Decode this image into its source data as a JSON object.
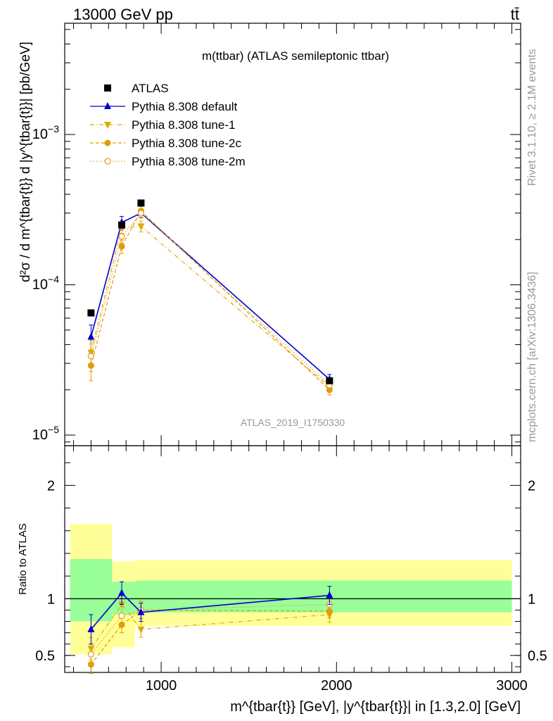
{
  "header": {
    "left": "13000 GeV pp",
    "right": "tt̄"
  },
  "side_labels": {
    "rivet": "Rivet 3.1.10, ≥ 2.1M events",
    "mcplots": "mcplots.cern.ch [arXiv:1306.3436]"
  },
  "chart_data": [
    {
      "type": "line",
      "title": "m(ttbar) (ATLAS semileptonic ttbar)",
      "watermark": "ATLAS_2019_I1750330",
      "ylabel": "d²σ / d m^{tbar{t}} d |y^{tbar{t}}| [pb/GeV]",
      "yscale": "log",
      "xlim": [
        450,
        3050
      ],
      "ylim": [
        8.5e-06,
        0.0055
      ],
      "yticks": [
        {
          "value": 1e-05,
          "base": "10",
          "exp": "−5"
        },
        {
          "value": 0.0001,
          "base": "10",
          "exp": "−4"
        },
        {
          "value": 0.001,
          "base": "10",
          "exp": "−3"
        }
      ],
      "legend": {
        "placement": "top-left",
        "entries": [
          "ATLAS",
          "Pythia 8.308 default",
          "Pythia 8.308 tune-1",
          "Pythia 8.308 tune-2c",
          "Pythia 8.308 tune-2m"
        ]
      },
      "series": [
        {
          "name": "ATLAS",
          "color": "#000000",
          "marker": "square",
          "x": [
            600,
            775,
            885,
            1960
          ],
          "y": [
            6.5e-05,
            0.00025,
            0.00035,
            2.3e-05
          ]
        },
        {
          "name": "Pythia 8.308 default",
          "color": "#0000cc",
          "marker": "triangle-up",
          "dash": "solid",
          "x": [
            600,
            775,
            885,
            1960
          ],
          "y": [
            4.5e-05,
            0.00026,
            0.0003,
            2.35e-05
          ],
          "err": [
            9e-06,
            2.5e-05,
            2e-05,
            1.8e-06
          ]
        },
        {
          "name": "Pythia 8.308 tune-1",
          "color": "#ddaa00",
          "marker": "triangle-down",
          "dash": "dashdot",
          "x": [
            600,
            775,
            885,
            1960
          ],
          "y": [
            3.55e-05,
            0.00024,
            0.000245,
            2.1e-05
          ],
          "err": [
            7e-06,
            2e-05,
            2e-05,
            1.5e-06
          ]
        },
        {
          "name": "Pythia 8.308 tune-2c",
          "color": "#e29a00",
          "marker": "circle",
          "dash": "dashed",
          "x": [
            600,
            775,
            885,
            1960
          ],
          "y": [
            2.9e-05,
            0.00018,
            0.00031,
            2e-05
          ],
          "err": [
            6e-06,
            1.8e-05,
            2.2e-05,
            1.5e-06
          ]
        },
        {
          "name": "Pythia 8.308 tune-2m",
          "color": "#e5a020",
          "marker": "circle-open",
          "dash": "dotted",
          "x": [
            600,
            775,
            885,
            1960
          ],
          "y": [
            3.35e-05,
            0.00021,
            0.0003,
            2.15e-05
          ],
          "err": [
            7e-06,
            2e-05,
            2.2e-05,
            1.6e-06
          ]
        }
      ]
    },
    {
      "type": "line",
      "ylabel": "Ratio to ATLAS",
      "xlabel": "m^{tbar{t}} [GeV], |y^{tbar{t}}| in [1.3,2.0] [GeV]",
      "xlim": [
        450,
        3050
      ],
      "ylim": [
        0.35,
        2.35
      ],
      "xticks": [
        1000,
        2000,
        3000
      ],
      "yticks": [
        0.5,
        1,
        2
      ],
      "bands": [
        {
          "x0": 480,
          "x1": 720,
          "yellow": [
            0.51,
            1.66
          ],
          "green": [
            0.8,
            1.35
          ]
        },
        {
          "x0": 720,
          "x1": 850,
          "yellow": [
            0.57,
            1.33
          ],
          "green": [
            0.86,
            1.15
          ]
        },
        {
          "x0": 850,
          "x1": 3000,
          "yellow": [
            0.76,
            1.34
          ],
          "green": [
            0.88,
            1.16
          ]
        }
      ],
      "series": [
        {
          "name": "Pythia 8.308 default",
          "color": "#0000cc",
          "marker": "triangle-up",
          "dash": "solid",
          "x": [
            600,
            775,
            885,
            1960
          ],
          "y": [
            0.73,
            1.05,
            0.88,
            1.03
          ],
          "err": [
            0.13,
            0.1,
            0.08,
            0.08
          ]
        },
        {
          "name": "Pythia 8.308 tune-1",
          "color": "#ddaa00",
          "marker": "triangle-down",
          "dash": "dashdot",
          "x": [
            600,
            775,
            885,
            1960
          ],
          "y": [
            0.56,
            0.95,
            0.73,
            0.86
          ],
          "err": [
            0.1,
            0.08,
            0.07,
            0.07
          ]
        },
        {
          "name": "Pythia 8.308 tune-2c",
          "color": "#e29a00",
          "marker": "circle",
          "dash": "dashed",
          "x": [
            600,
            775,
            885,
            1960
          ],
          "y": [
            0.42,
            0.77,
            0.9,
            0.89
          ],
          "err": [
            0.08,
            0.07,
            0.07,
            0.06
          ]
        },
        {
          "name": "Pythia 8.308 tune-2m",
          "color": "#e5a020",
          "marker": "circle-open",
          "dash": "dotted",
          "x": [
            600,
            775,
            885,
            1960
          ],
          "y": [
            0.51,
            0.85,
            0.9,
            0.95
          ],
          "err": [
            0.09,
            0.08,
            0.08,
            0.07
          ]
        }
      ]
    }
  ]
}
